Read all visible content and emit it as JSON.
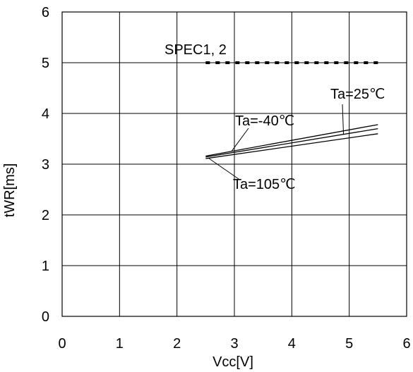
{
  "chart_data": {
    "type": "line",
    "xlabel": "Vcc[V]",
    "ylabel": "tWR[ms]",
    "xlim": [
      0,
      6
    ],
    "ylim": [
      0,
      6
    ],
    "x_ticks": [
      "0",
      "1",
      "2",
      "3",
      "4",
      "5",
      "6"
    ],
    "y_ticks": [
      "0",
      "1",
      "2",
      "3",
      "4",
      "5",
      "6"
    ],
    "grid": true,
    "series": [
      {
        "name": "Ta=-40℃",
        "x": [
          2.5,
          5.5
        ],
        "y": [
          3.16,
          3.78
        ]
      },
      {
        "name": "Ta=25℃",
        "x": [
          2.5,
          5.5
        ],
        "y": [
          3.14,
          3.7
        ]
      },
      {
        "name": "Ta=105℃",
        "x": [
          2.5,
          5.5
        ],
        "y": [
          3.11,
          3.6
        ]
      }
    ],
    "spec": {
      "label": "SPEC1, 2",
      "y": 5,
      "x": [
        2.5,
        5.5
      ]
    },
    "annotations": [
      {
        "text": "SPEC1, 2",
        "series": "spec"
      },
      {
        "text": "Ta=25℃",
        "series": "Ta=25℃"
      },
      {
        "text": "Ta=-40℃",
        "series": "Ta=-40℃"
      },
      {
        "text": "Ta=105℃",
        "series": "Ta=105℃"
      }
    ]
  },
  "colors": {
    "line": "#000000",
    "grid": "#000000",
    "background": "#ffffff"
  }
}
